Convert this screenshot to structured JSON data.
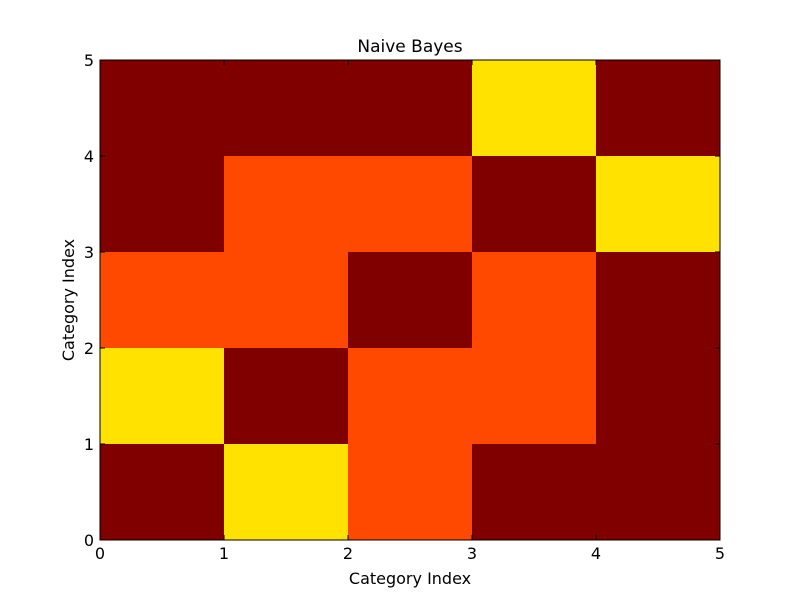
{
  "chart_data": {
    "type": "heatmap",
    "title": "Naive Bayes",
    "xlabel": "Category Index",
    "ylabel": "Category Index",
    "xlim": [
      0,
      5
    ],
    "ylim": [
      0,
      5
    ],
    "x_ticks": [
      "0",
      "1",
      "2",
      "3",
      "4",
      "5"
    ],
    "y_ticks": [
      "0",
      "1",
      "2",
      "3",
      "4",
      "5"
    ],
    "grid": false,
    "legend": "none",
    "colormap": "hot",
    "color_scale": {
      "0": "#800000",
      "1": "#ff4800",
      "2": "#ffe200"
    },
    "rows_bottom_to_top": [
      [
        0,
        2,
        1,
        0,
        0
      ],
      [
        2,
        0,
        1,
        1,
        0
      ],
      [
        1,
        1,
        0,
        1,
        0
      ],
      [
        0,
        1,
        1,
        0,
        2
      ],
      [
        0,
        0,
        0,
        2,
        0
      ]
    ]
  }
}
